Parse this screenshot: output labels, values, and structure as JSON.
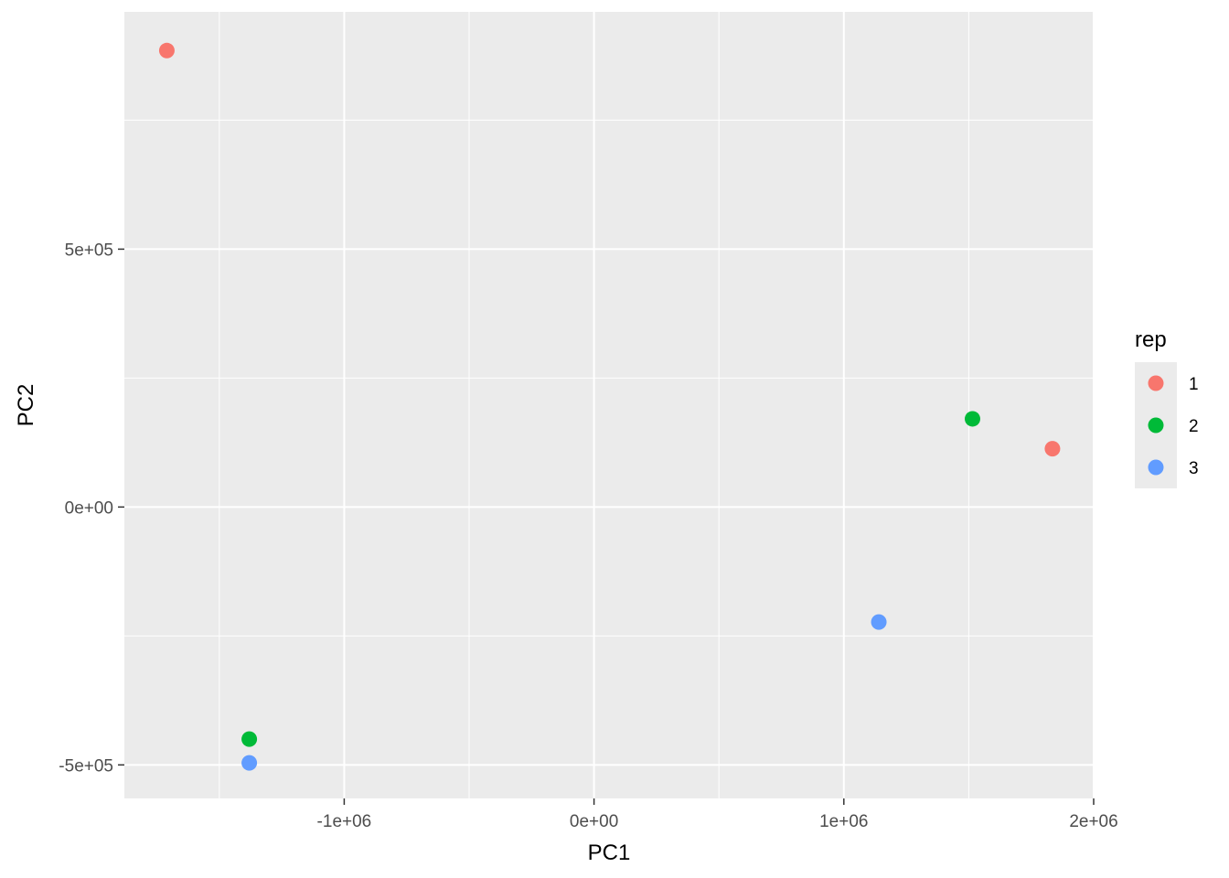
{
  "chart_data": {
    "type": "scatter",
    "xlabel": "PC1",
    "ylabel": "PC2",
    "xlim": [
      -1880000,
      2000000
    ],
    "ylim": [
      -565000,
      960000
    ],
    "x_ticks": [
      {
        "value": -1000000,
        "label": "-1e+06"
      },
      {
        "value": 0,
        "label": "0e+00"
      },
      {
        "value": 1000000,
        "label": "1e+06"
      },
      {
        "value": 2000000,
        "label": "2e+06"
      }
    ],
    "y_ticks": [
      {
        "value": -500000,
        "label": "-5e+05"
      },
      {
        "value": 0,
        "label": "0e+00"
      },
      {
        "value": 500000,
        "label": "5e+05"
      }
    ],
    "grid": true,
    "legend": {
      "title": "rep",
      "placement": "right",
      "entries": [
        {
          "label": "1",
          "color": "#F8766D"
        },
        {
          "label": "2",
          "color": "#00BA38"
        },
        {
          "label": "3",
          "color": "#619CFF"
        }
      ]
    },
    "points": [
      {
        "x": -1710000,
        "y": 885000,
        "rep": "1"
      },
      {
        "x": 1835000,
        "y": 113000,
        "rep": "1"
      },
      {
        "x": -1380000,
        "y": -450000,
        "rep": "2"
      },
      {
        "x": 1515000,
        "y": 171000,
        "rep": "2"
      },
      {
        "x": -1380000,
        "y": -496000,
        "rep": "3"
      },
      {
        "x": 1140000,
        "y": -223000,
        "rep": "3"
      }
    ]
  }
}
